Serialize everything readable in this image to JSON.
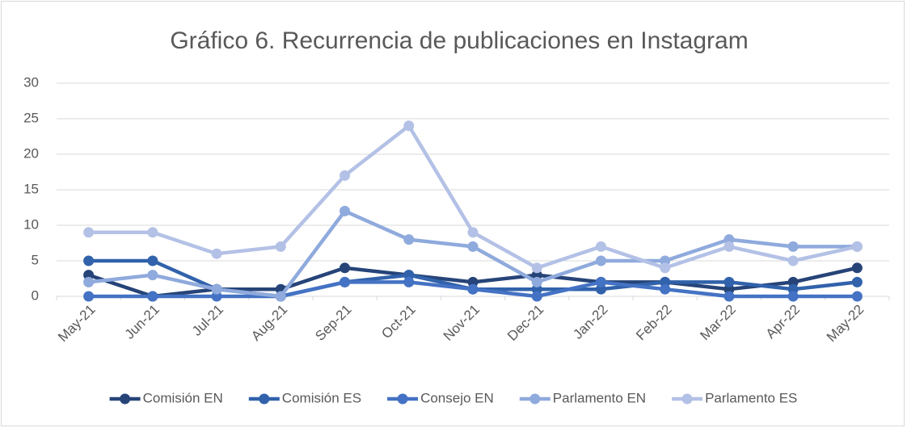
{
  "chart_data": {
    "type": "line",
    "title": "Gráfico 6. Recurrencia de publicaciones en Instagram",
    "categories": [
      "May-21",
      "Jun-21",
      "Jul-21",
      "Aug-21",
      "Sep-21",
      "Oct-21",
      "Nov-21",
      "Dec-21",
      "Jan-22",
      "Feb-22",
      "Mar-22",
      "Apr-22",
      "May-22"
    ],
    "series": [
      {
        "name": "Comisión EN",
        "color": "#264478",
        "values": [
          3,
          0,
          1,
          1,
          4,
          3,
          2,
          3,
          2,
          2,
          1,
          2,
          4
        ]
      },
      {
        "name": "Comisión ES",
        "color": "#3162ab",
        "values": [
          5,
          5,
          1,
          0,
          2,
          3,
          1,
          1,
          1,
          2,
          2,
          1,
          2
        ]
      },
      {
        "name": "Consejo EN",
        "color": "#4472c4",
        "values": [
          0,
          0,
          0,
          0,
          2,
          2,
          1,
          0,
          2,
          1,
          0,
          0,
          0
        ]
      },
      {
        "name": "Parlamento EN",
        "color": "#8faadc",
        "values": [
          2,
          3,
          1,
          0,
          12,
          8,
          7,
          2,
          5,
          5,
          8,
          7,
          7
        ]
      },
      {
        "name": "Parlamento ES",
        "color": "#b4c1e6",
        "values": [
          9,
          9,
          6,
          7,
          17,
          24,
          9,
          4,
          7,
          4,
          7,
          5,
          7
        ]
      }
    ],
    "ylim": [
      0,
      30
    ],
    "yticks": [
      0,
      5,
      10,
      15,
      20,
      25,
      30
    ],
    "grid": true,
    "legend": "bottom"
  }
}
